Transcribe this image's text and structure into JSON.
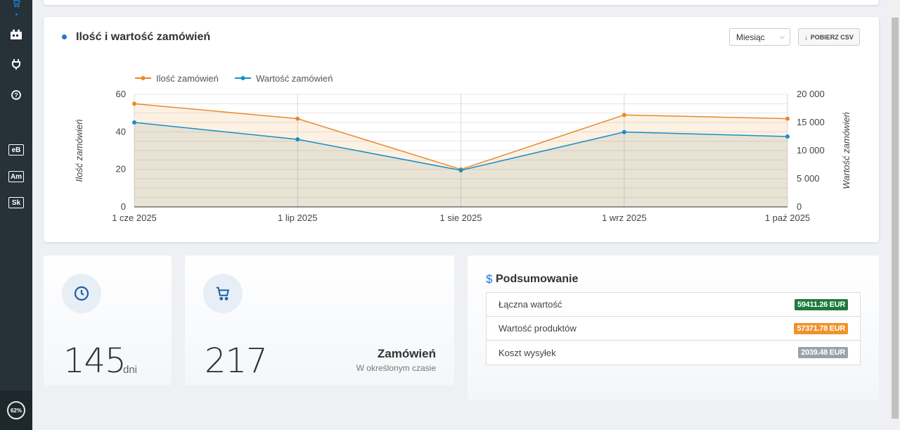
{
  "sidebar": {
    "badges": [
      "eB",
      "Am",
      "Sk"
    ],
    "progress": "62%"
  },
  "chart_card": {
    "title": "Ilość i wartość zamówień",
    "period_select": "Miesiąc",
    "csv_button": "POBIERZ CSV"
  },
  "chart_data": {
    "type": "line",
    "categories": [
      "1 cze 2025",
      "1 lip 2025",
      "1 sie 2025",
      "1 wrz 2025",
      "1 paź 2025"
    ],
    "series": [
      {
        "name": "Ilość zamówień",
        "axis": "left",
        "color": "#e8892b",
        "values": [
          55,
          47,
          20,
          49,
          47
        ]
      },
      {
        "name": "Wartość zamówień",
        "axis": "right",
        "color": "#1a8fc4",
        "values": [
          15000,
          12000,
          6500,
          13300,
          12500
        ]
      }
    ],
    "ylabel_left": "Ilość zamówień",
    "ylabel_right": "Wartość zamówień",
    "ylim_left": [
      0,
      60
    ],
    "ylim_right": [
      0,
      20000
    ],
    "yticks_left": [
      "0",
      "20",
      "40",
      "60"
    ],
    "yticks_right": [
      "0",
      "5 000",
      "10 000",
      "15 000",
      "20 000"
    ],
    "legend": "top-left",
    "grid": true
  },
  "stats": {
    "days_value": "145",
    "days_unit": "dni",
    "orders_value": "217",
    "orders_title": "Zamówień",
    "orders_sub": "W określonym czasie"
  },
  "summary": {
    "title": "Podsumowanie",
    "rows": [
      {
        "label": "Łączna wartość",
        "value": "59411.26 EUR",
        "color": "#1e7a3c"
      },
      {
        "label": "Wartość produktów",
        "value": "57371.78 EUR",
        "color": "#f0922b"
      },
      {
        "label": "Koszt wysyłek",
        "value": "2039.48 EUR",
        "color": "#9aa2ab"
      }
    ]
  },
  "colors": {
    "accent": "#1d7ad3",
    "sidebar": "#263238"
  }
}
